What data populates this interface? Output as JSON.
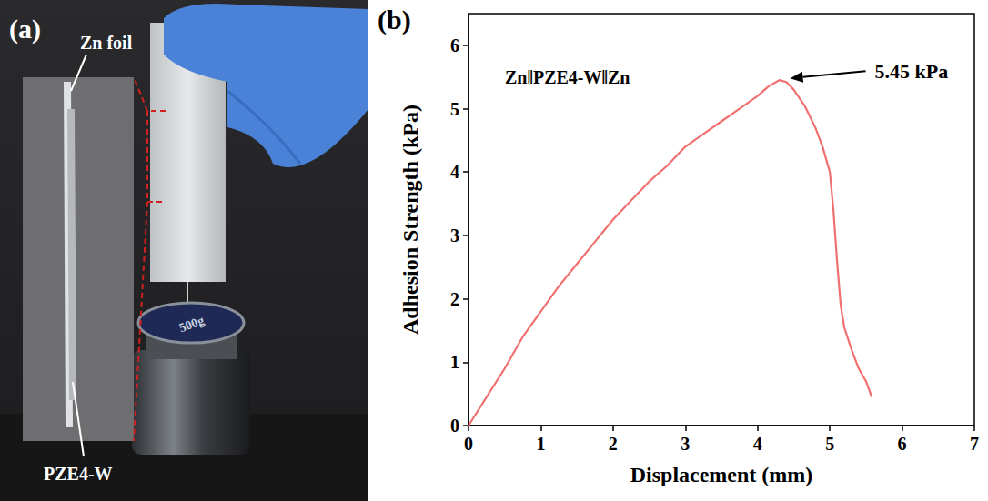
{
  "photo": {
    "panel_label": "(a)",
    "foil_label": "Zn foil",
    "electrolyte_label": "PZE4-W",
    "weight_label": "500g"
  },
  "chart_data": {
    "type": "line",
    "panel_label": "(b)",
    "title": "Zn‖PZE4-W‖Zn",
    "x_label": "Displacement (mm)",
    "y_label": "Adhesion Strength (kPa)",
    "annotation": {
      "text": "5.45 kPa",
      "x": 4.3,
      "y": 5.45
    },
    "x": [
      0,
      0.25,
      0.5,
      0.75,
      1,
      1.25,
      1.5,
      1.75,
      2,
      2.25,
      2.5,
      2.75,
      3,
      3.25,
      3.5,
      3.75,
      4,
      4.15,
      4.3,
      4.4,
      4.5,
      4.65,
      4.8,
      4.9,
      5.0,
      5.05,
      5.1,
      5.15,
      5.2,
      5.3,
      5.4,
      5.5,
      5.58
    ],
    "values": [
      0,
      0.45,
      0.9,
      1.4,
      1.8,
      2.2,
      2.55,
      2.9,
      3.25,
      3.55,
      3.85,
      4.1,
      4.4,
      4.6,
      4.8,
      5.0,
      5.2,
      5.35,
      5.45,
      5.42,
      5.3,
      5.05,
      4.7,
      4.4,
      4.0,
      3.4,
      2.6,
      1.9,
      1.55,
      1.2,
      0.9,
      0.7,
      0.45
    ],
    "color": "#f07070",
    "xlim": [
      0,
      7
    ],
    "xticks": [
      0,
      1,
      2,
      3,
      4,
      5,
      6,
      7
    ],
    "ylim": [
      0,
      6.5
    ],
    "yticks": [
      0,
      1,
      2,
      3,
      4,
      5,
      6
    ],
    "grid": false
  }
}
